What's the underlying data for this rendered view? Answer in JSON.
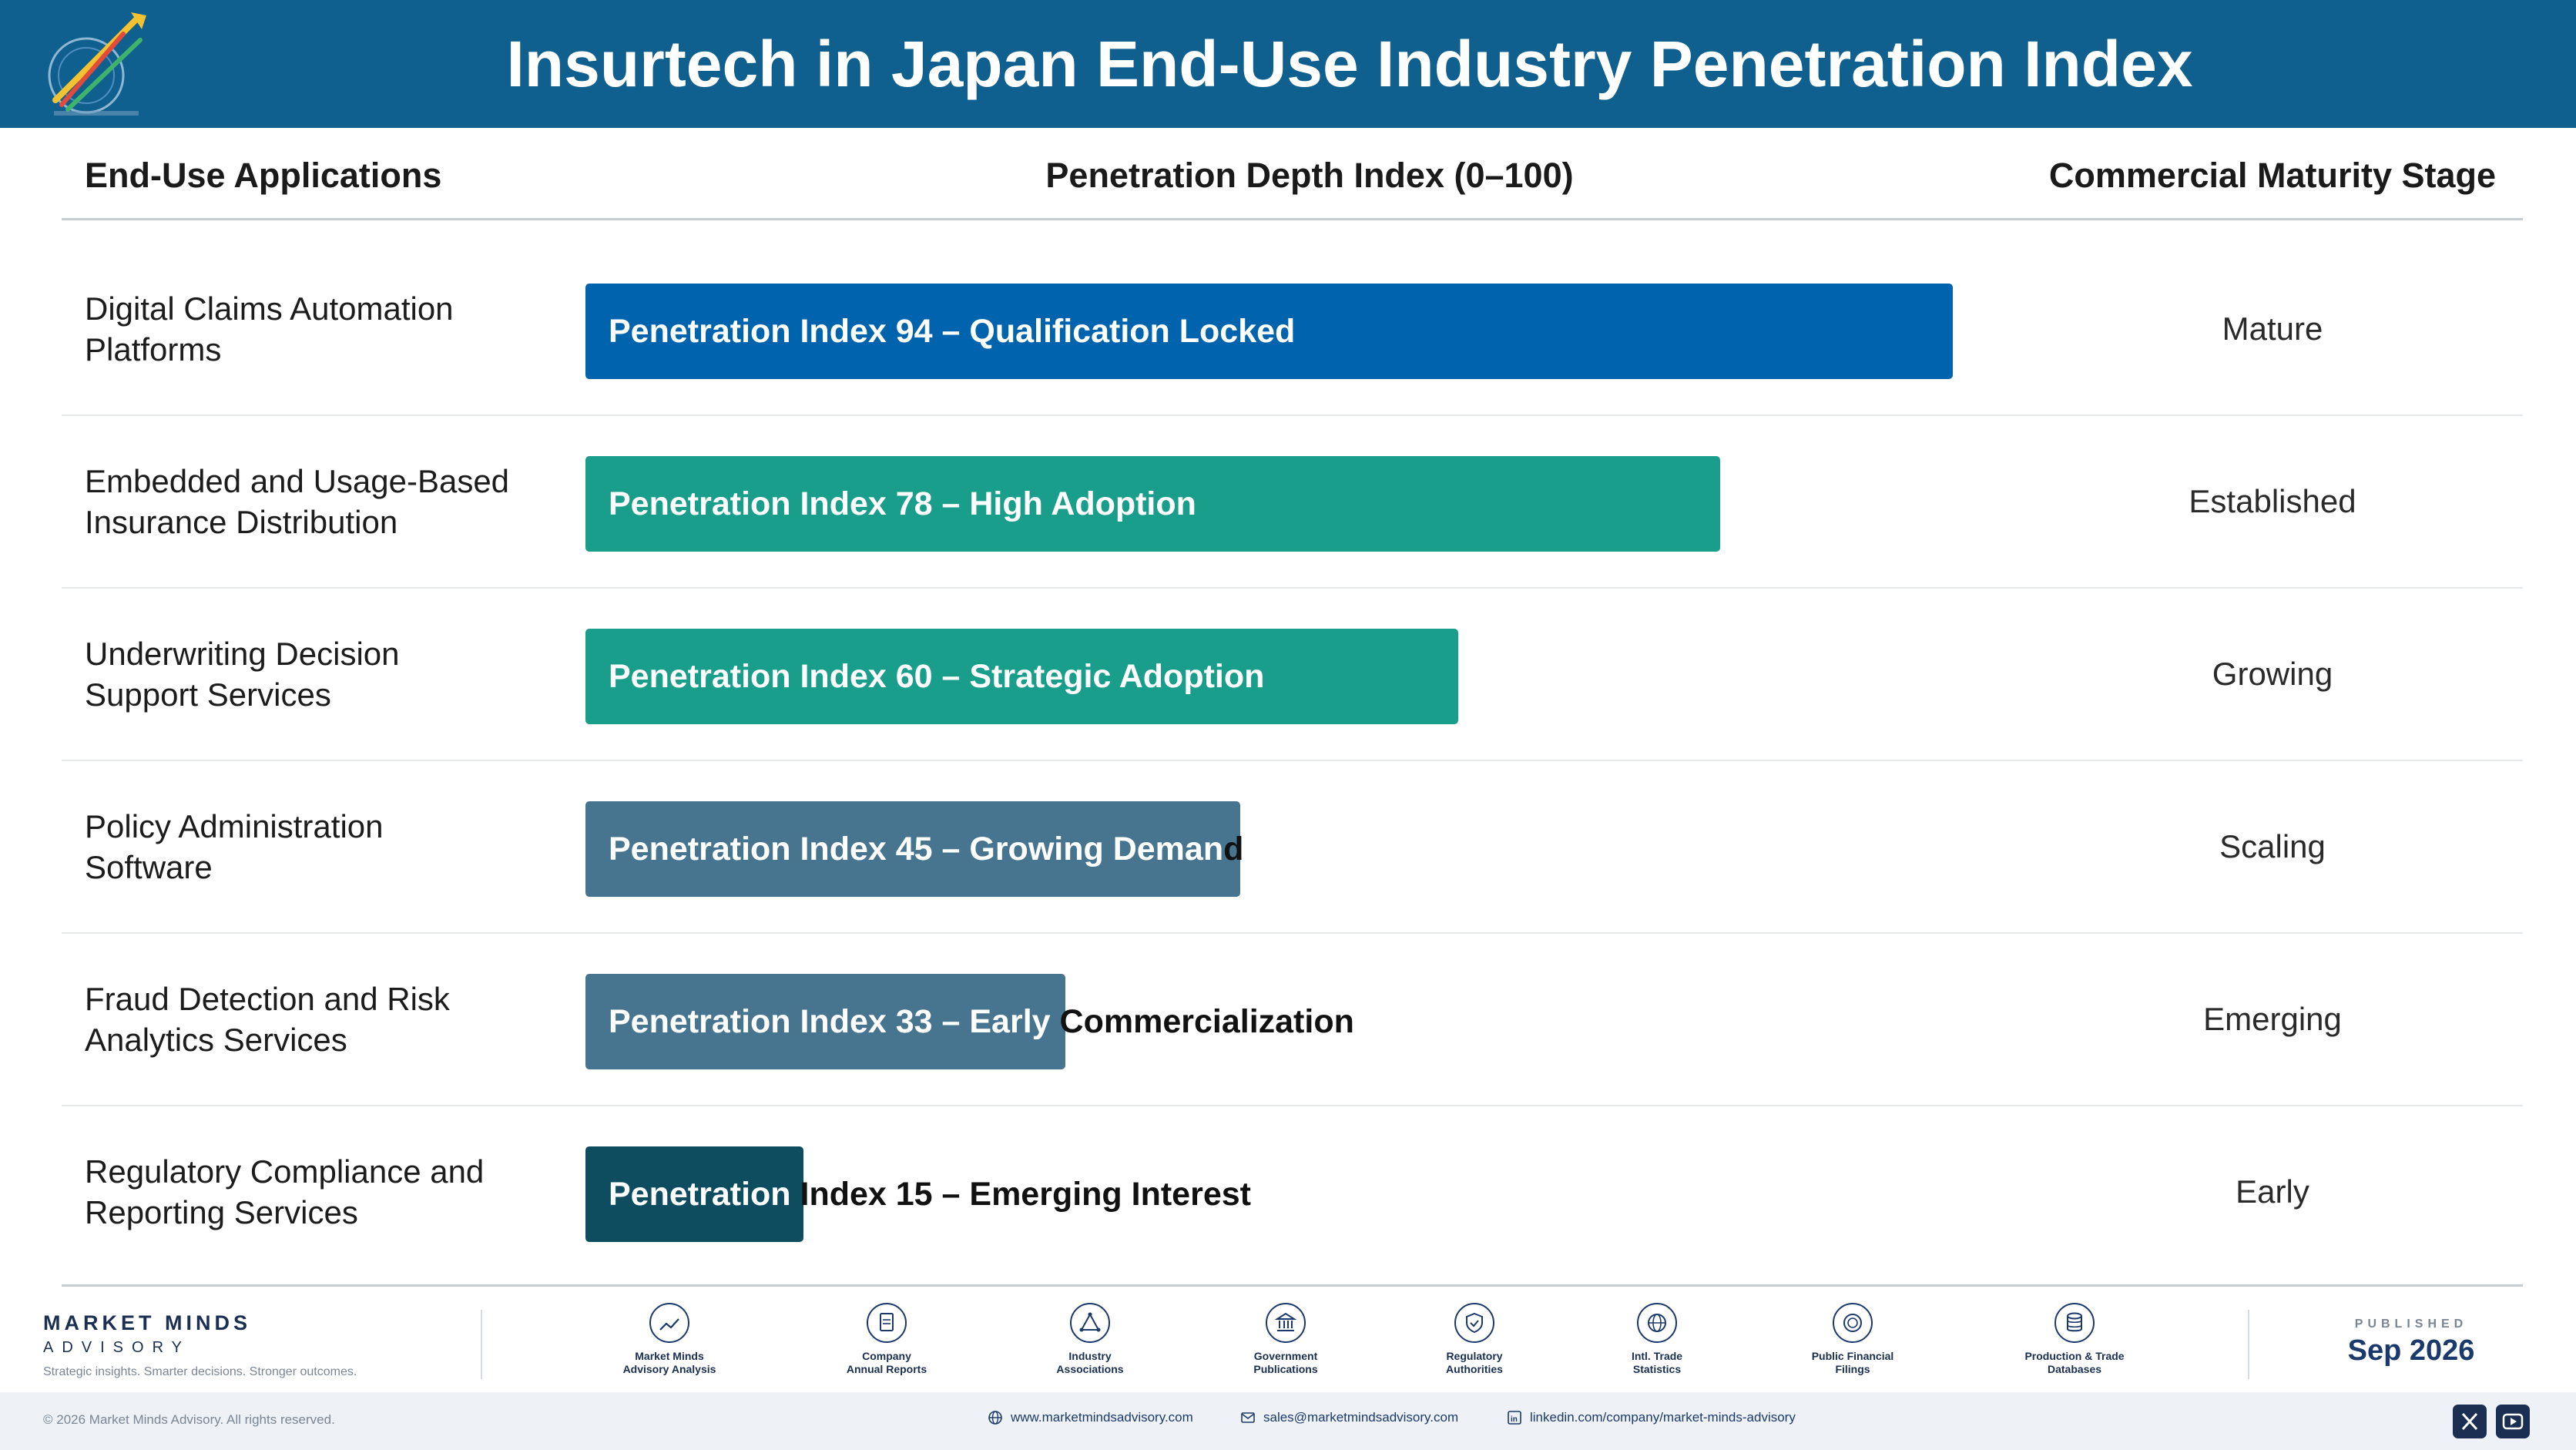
{
  "header": {
    "title": "Insurtech in Japan End-Use Industry Penetration Index",
    "logo_icon": "rocket-logo-icon"
  },
  "columns": {
    "applications": "End-Use Applications",
    "depth": "Penetration Depth Index (0–100)",
    "stage": "Commercial Maturity Stage"
  },
  "chart_data": {
    "type": "bar",
    "orientation": "horizontal",
    "xlim": [
      0,
      100
    ],
    "categories": [
      "Digital Claims Automation Platforms",
      "Embedded and Usage-Based Insurance Distribution",
      "Underwriting Decision Support Services",
      "Policy Administration Software",
      "Fraud Detection and Risk Analytics Services",
      "Regulatory Compliance and Reporting Services"
    ],
    "category_lines": [
      [
        "Digital Claims Automation",
        "Platforms"
      ],
      [
        "Embedded and Usage-Based",
        "Insurance Distribution"
      ],
      [
        "Underwriting Decision",
        "Support Services"
      ],
      [
        "Policy Administration",
        "Software"
      ],
      [
        "Fraud Detection and Risk",
        "Analytics Services"
      ],
      [
        "Regulatory Compliance and",
        "Reporting Services"
      ]
    ],
    "values": [
      94,
      78,
      60,
      45,
      33,
      15
    ],
    "data_labels": [
      "Penetration Index 94 – Qualification Locked",
      "Penetration Index 78 – High Adoption",
      "Penetration Index 60 – Strategic Adoption",
      "Penetration Index 45 – Growing Demand",
      "Penetration Index 33 – Early Commercialization",
      "Penetration Index 15 – Emerging Interest"
    ],
    "stages": [
      "Mature",
      "Established",
      "Growing",
      "Scaling",
      "Emerging",
      "Early"
    ],
    "colors": [
      "#0063ad",
      "#1a9e8c",
      "#1a9e8c",
      "#47758f",
      "#47758f",
      "#0e4d60"
    ]
  },
  "footer": {
    "brand_name": "MARKET MINDS",
    "brand_sub": "ADVISORY",
    "tagline": "Strategic insights. Smarter decisions. Stronger outcomes.",
    "sources": [
      {
        "icon": "trend-chart-icon",
        "line1": "Market Minds",
        "line2": "Advisory Analysis"
      },
      {
        "icon": "document-icon",
        "line1": "Company",
        "line2": "Annual Reports"
      },
      {
        "icon": "network-icon",
        "line1": "Industry",
        "line2": "Associations"
      },
      {
        "icon": "government-building-icon",
        "line1": "Government",
        "line2": "Publications"
      },
      {
        "icon": "shield-check-icon",
        "line1": "Regulatory",
        "line2": "Authorities"
      },
      {
        "icon": "globe-icon",
        "line1": "Intl. Trade",
        "line2": "Statistics"
      },
      {
        "icon": "coin-icon",
        "line1": "Public Financial",
        "line2": "Filings"
      },
      {
        "icon": "database-icon",
        "line1": "Production & Trade",
        "line2": "Databases"
      }
    ],
    "published_label": "PUBLISHED",
    "published_date": "Sep 2026",
    "copyright": "© 2026 Market Minds Advisory. All rights reserved.",
    "website": "www.marketmindsadvisory.com",
    "email": "sales@marketmindsadvisory.com",
    "linkedin": "linkedin.com/company/market-minds-advisory"
  }
}
